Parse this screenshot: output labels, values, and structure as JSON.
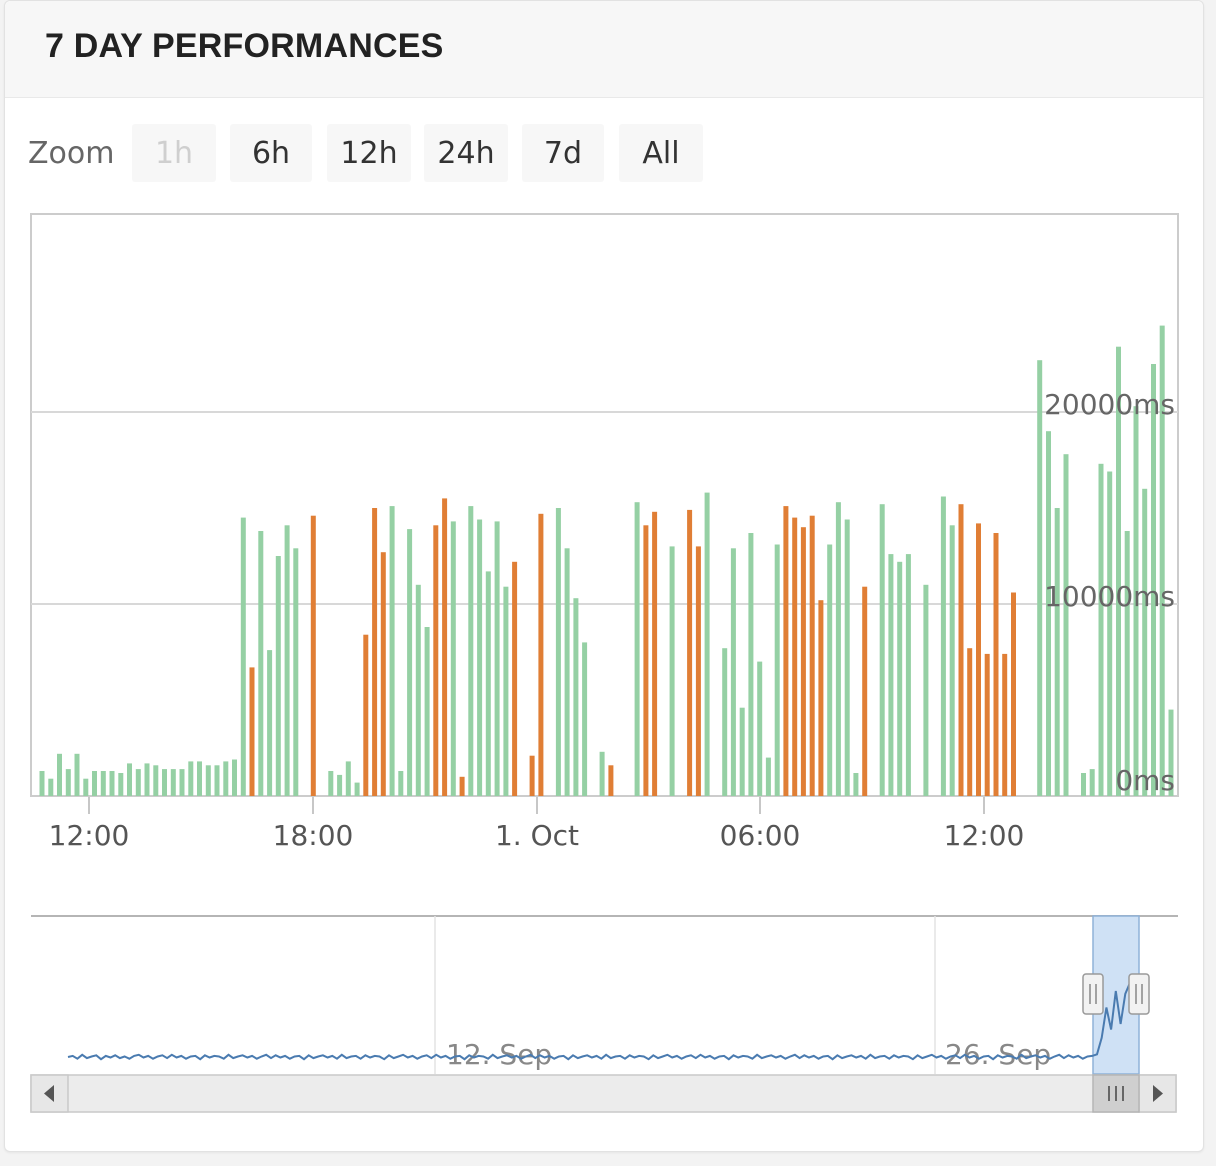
{
  "panel": {
    "title": "7 DAY PERFORMANCES"
  },
  "zoom": {
    "label": "Zoom",
    "buttons": [
      {
        "label": "1h",
        "disabled": true
      },
      {
        "label": "6h",
        "disabled": false
      },
      {
        "label": "12h",
        "disabled": false
      },
      {
        "label": "24h",
        "disabled": false
      },
      {
        "label": "7d",
        "disabled": false
      },
      {
        "label": "All",
        "disabled": false
      }
    ]
  },
  "colors": {
    "good": "#95d0a4",
    "slow": "#e07e35",
    "grid": "#d8d8d8",
    "navigator_line": "#4a7bb0",
    "navigator_mask": "#cfe1f5"
  },
  "chart_data": {
    "type": "bar",
    "y_unit": "ms",
    "ylim": [
      0,
      30000
    ],
    "y_ticks": [
      {
        "value": 0,
        "label": "0ms"
      },
      {
        "value": 10000,
        "label": "10000ms"
      },
      {
        "value": 20000,
        "label": "20000ms"
      }
    ],
    "x_ticks": [
      {
        "label": "12:00",
        "index": 7
      },
      {
        "label": "18:00",
        "index": 38
      },
      {
        "label": "1. Oct",
        "index": 69
      },
      {
        "label": "06:00",
        "index": 100
      },
      {
        "label": "12:00",
        "index": 131
      }
    ],
    "series": [
      {
        "values": [
          1300,
          900,
          2200,
          1400,
          2200,
          900,
          1300,
          1300,
          1300,
          1200,
          1700,
          1400,
          1700,
          1600,
          1400,
          1400,
          1400,
          1800,
          1800,
          1600,
          1600,
          1800,
          1900,
          14500,
          6700,
          13800,
          7600,
          12500,
          14100,
          12900,
          0,
          14600,
          0,
          1300,
          1100,
          1800,
          700,
          8400,
          15000,
          12700,
          15100,
          1300,
          13900,
          11000,
          8800,
          14100,
          15500,
          14300,
          1000,
          15100,
          14400,
          11700,
          14300,
          10900,
          12200,
          0,
          2100,
          14700,
          0,
          15000,
          12900,
          10300,
          8000,
          0,
          2300,
          1600,
          0,
          0,
          15300,
          14100,
          14800,
          0,
          13000,
          0,
          14900,
          13000,
          15800,
          0,
          7700,
          12900,
          4600,
          13700,
          7000,
          2000,
          13100,
          15100,
          14500,
          14000,
          14600,
          10200,
          13100,
          15300,
          14400,
          1200,
          10900,
          0,
          15200,
          12600,
          12200,
          12600,
          0,
          11000,
          0,
          15600,
          14100,
          15200,
          7700,
          14200,
          7400,
          13700,
          7400,
          10600,
          0,
          0,
          22700,
          19000,
          15000,
          17800,
          0,
          1200,
          1400,
          17300,
          16900,
          23400,
          13800,
          20300,
          16000,
          22500,
          24500,
          4500
        ],
        "colors": [
          "g",
          "g",
          "g",
          "g",
          "g",
          "g",
          "g",
          "g",
          "g",
          "g",
          "g",
          "g",
          "g",
          "g",
          "g",
          "g",
          "g",
          "g",
          "g",
          "g",
          "g",
          "g",
          "g",
          "g",
          "o",
          "g",
          "g",
          "g",
          "g",
          "g",
          "g",
          "o",
          "g",
          "g",
          "g",
          "g",
          "g",
          "o",
          "o",
          "o",
          "g",
          "g",
          "g",
          "g",
          "g",
          "o",
          "o",
          "g",
          "o",
          "g",
          "g",
          "g",
          "g",
          "g",
          "o",
          "g",
          "o",
          "o",
          "g",
          "g",
          "g",
          "g",
          "g",
          "g",
          "g",
          "o",
          "g",
          "g",
          "g",
          "o",
          "o",
          "g",
          "g",
          "g",
          "o",
          "o",
          "g",
          "g",
          "g",
          "g",
          "g",
          "g",
          "g",
          "g",
          "g",
          "o",
          "o",
          "o",
          "o",
          "o",
          "g",
          "g",
          "g",
          "g",
          "o",
          "o",
          "g",
          "g",
          "g",
          "g",
          "g",
          "g",
          "o",
          "g",
          "g",
          "o",
          "o",
          "o",
          "o",
          "o",
          "o",
          "o",
          "g",
          "g",
          "g",
          "g",
          "g",
          "g",
          "g",
          "g",
          "g",
          "g",
          "g",
          "g",
          "g",
          "g",
          "g",
          "g",
          "g",
          "g",
          "g"
        ]
      }
    ],
    "navigator": {
      "x_labels": [
        "12. Sep",
        "26. Sep"
      ],
      "values": [
        0,
        0.2,
        -0.3,
        0.4,
        -0.2,
        0.1,
        0.3,
        -0.4,
        0.2,
        -0.1,
        0.3,
        -0.2,
        0.1,
        -0.3,
        0.2,
        0.4,
        -0.1,
        0.2,
        -0.3,
        0.1,
        0.3,
        -0.2,
        0.4,
        -0.1,
        0.2,
        -0.3,
        0.1,
        0.2,
        -0.4,
        0.3,
        -0.1,
        0.2,
        0.1,
        -0.3,
        0.4,
        -0.2,
        0.1,
        0.3,
        -0.1,
        0.2,
        -0.3,
        0.1,
        0.4,
        -0.2,
        0.3,
        -0.1,
        0.2,
        -0.3,
        0.1,
        0.2,
        -0.4,
        0.3,
        -0.2,
        0.1,
        0.3,
        -0.1,
        0.2,
        -0.3,
        0.4,
        -0.2,
        0.1,
        0.2,
        -0.3,
        0.3,
        -0.1,
        0.2,
        0.1,
        -0.4,
        0.3,
        -0.2,
        0.1,
        0.4,
        -0.1,
        0.2,
        -0.3,
        0.1,
        0.3,
        -0.2,
        0.4,
        -0.1,
        0.2,
        -0.3,
        0.1,
        0.2,
        -0.4,
        0.3,
        -0.1,
        0.2,
        0.1,
        -0.3,
        0.4,
        -0.2,
        0.1,
        0.3,
        -0.1,
        0.2,
        -0.3,
        0.1,
        0.4,
        -0.2,
        0.3,
        -0.1,
        0.2,
        -0.3,
        0.1,
        0.2,
        -0.4,
        0.3,
        -0.2,
        0.1,
        0.3,
        -0.1,
        0.2,
        -0.3,
        0.4,
        -0.2,
        0.1,
        0.2,
        -0.3,
        0.3,
        -0.1,
        0.2,
        0.1,
        -0.4,
        0.3,
        -0.2,
        0.1,
        0.4,
        -0.1,
        0.2,
        -0.3,
        0.1,
        0.3,
        -0.2,
        0.4,
        -0.1,
        0.2,
        -0.3,
        0.1,
        0.2,
        -0.4,
        0.3,
        -0.1,
        0.2,
        0.1,
        -0.3,
        0.4,
        -0.2,
        0.1,
        0.3,
        -0.1,
        0.2,
        -0.3,
        0.1,
        0.4,
        -0.2,
        0.3,
        -0.1,
        0.2,
        -0.3,
        0.1,
        0.2,
        -0.4,
        0.3,
        -0.2,
        0.1,
        0.3,
        -0.1,
        0.2,
        -0.3,
        0.4,
        -0.2,
        0.1,
        0.2,
        -0.3,
        0.3,
        -0.1,
        0.2,
        0.1,
        -0.4,
        0.3,
        -0.2,
        0.1,
        0.4,
        -0.1,
        0.2,
        -0.3,
        0.1,
        0.3,
        -0.2,
        0.4,
        -0.1,
        0.2,
        -0.3,
        0.1,
        0.2,
        -0.4,
        0.3,
        -0.1,
        0.2,
        0.1,
        -0.3,
        0.4,
        -0.2,
        0.1,
        0.3,
        -0.1,
        0.2,
        -0.3,
        0.1,
        0.4,
        -0.2,
        0.3,
        -0.1,
        0.2,
        -0.3,
        0.1,
        0.2,
        0.5,
        3.5,
        9.0,
        5.0,
        12.0,
        6.0,
        11.5,
        13.5
      ]
    }
  }
}
